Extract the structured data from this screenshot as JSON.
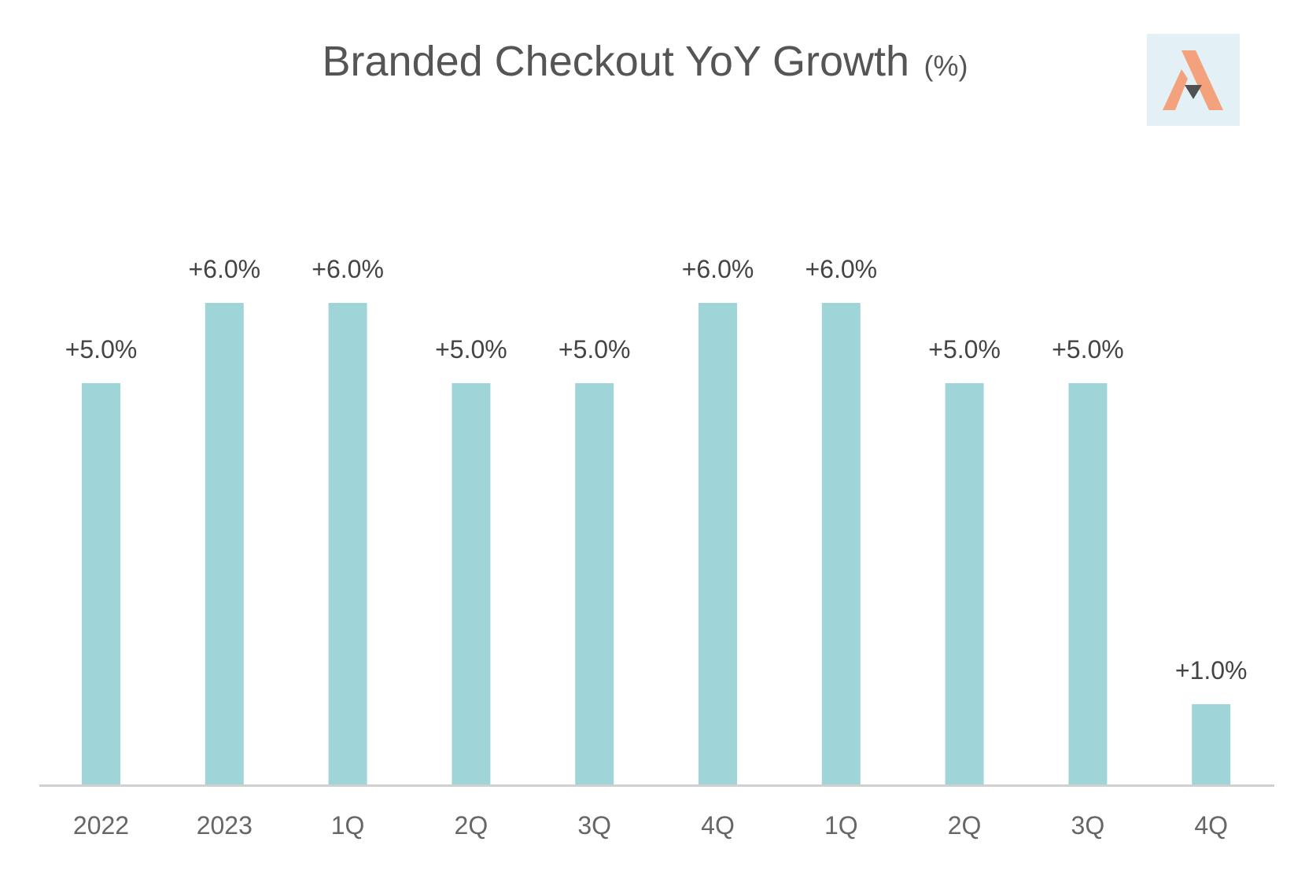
{
  "chart_data": {
    "type": "bar",
    "title": "Branded Checkout YoY Growth",
    "title_unit": "(%)",
    "categories": [
      "2022",
      "2023",
      "1Q",
      "2Q",
      "3Q",
      "4Q",
      "1Q",
      "2Q",
      "3Q",
      "4Q"
    ],
    "values": [
      5.0,
      6.0,
      6.0,
      5.0,
      5.0,
      6.0,
      6.0,
      5.0,
      5.0,
      1.0
    ],
    "data_labels": [
      "+5.0%",
      "+6.0%",
      "+6.0%",
      "+5.0%",
      "+5.0%",
      "+6.0%",
      "+6.0%",
      "+5.0%",
      "+5.0%",
      "+1.0%"
    ],
    "xlabel": "",
    "ylabel": "",
    "ylim": [
      0,
      6
    ],
    "grid": false,
    "legend": "none",
    "bar_color": "#9fd4d8",
    "axis_color": "#d0d0d0"
  },
  "logo": {
    "name": "logo-icon",
    "bg_color": "#e3f1f6",
    "accent_color": "#f4a27e",
    "mark_color": "#505050"
  }
}
